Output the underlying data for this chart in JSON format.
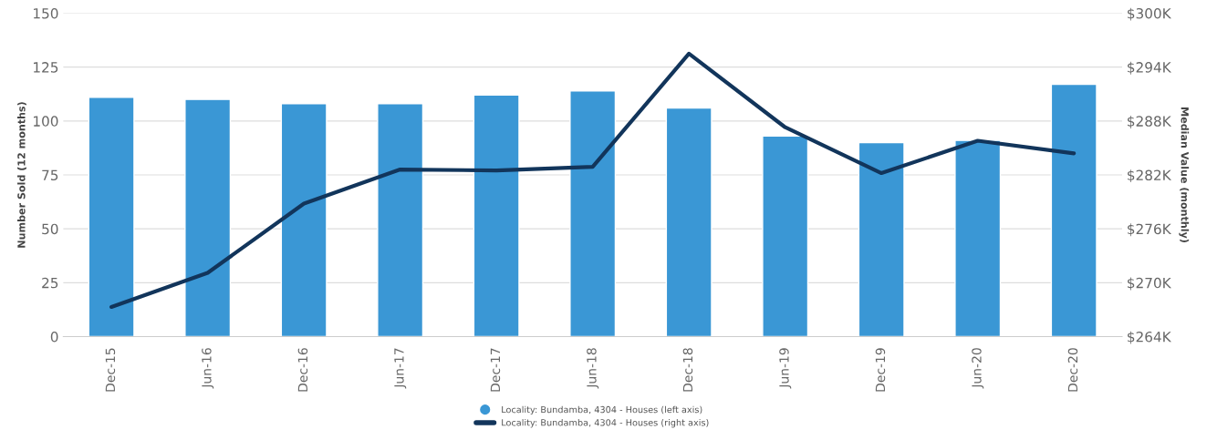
{
  "chart_data": {
    "type": "bar",
    "categories": [
      "Dec-15",
      "Jun-16",
      "Dec-16",
      "Jun-17",
      "Dec-17",
      "Jun-18",
      "Dec-18",
      "Jun-19",
      "Dec-19",
      "Jun-20",
      "Dec-20"
    ],
    "series": [
      {
        "name": "Locality: Bundamba, 4304 - Houses (left axis)",
        "color": "#3a97d5",
        "values": [
          111,
          110,
          108,
          108,
          112,
          114,
          106,
          93,
          90,
          91,
          117
        ]
      },
      {
        "name": "Locality: Bundamba, 4304 - Houses (right axis)",
        "type": "line",
        "axis": "y2",
        "color": "#12355b",
        "values": [
          267300,
          271100,
          278800,
          282600,
          282500,
          282900,
          295500,
          287300,
          282200,
          285800,
          284400
        ]
      }
    ],
    "ylabel": "Number Sold (12 months)",
    "y2label": "Median Value (monthly)",
    "ylim": [
      0,
      150
    ],
    "yticks": [
      0,
      25,
      50,
      75,
      100,
      125,
      150
    ],
    "y2lim": [
      264000,
      300000
    ],
    "y2ticks": [
      {
        "value": 264000,
        "label": "$264K"
      },
      {
        "value": 270000,
        "label": "$270K"
      },
      {
        "value": 276000,
        "label": "$276K"
      },
      {
        "value": 282000,
        "label": "$282K"
      },
      {
        "value": 288000,
        "label": "$288K"
      },
      {
        "value": 294000,
        "label": "$294K"
      },
      {
        "value": 300000,
        "label": "$300K"
      }
    ],
    "grid": "y",
    "legend": "bottom",
    "marker": "none",
    "line_style": "solid"
  }
}
